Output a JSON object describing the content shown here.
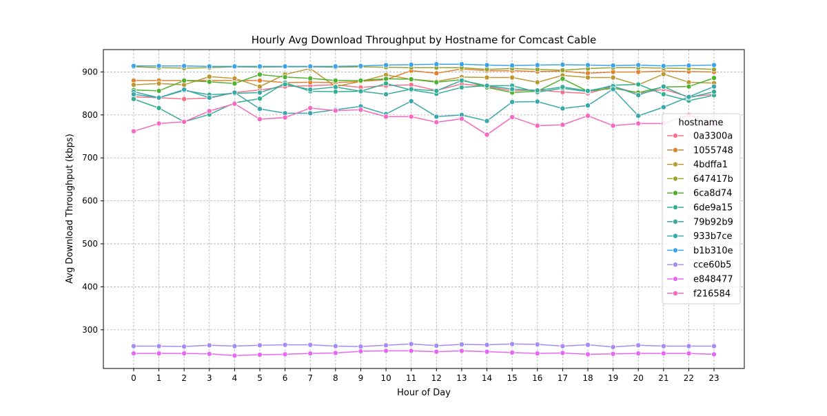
{
  "chart_data": {
    "type": "line",
    "title": "Hourly Avg Download Throughput by Hostname for Comcast Cable",
    "xlabel": "Hour of Day",
    "ylabel": "Avg Download Throughput (kbps)",
    "legend_title": "hostname",
    "legend_position": "right",
    "grid": true,
    "xlim": [
      -1.2,
      24.2
    ],
    "ylim": [
      210,
      952
    ],
    "yticks": [
      300,
      400,
      500,
      600,
      700,
      800,
      900
    ],
    "x": [
      0,
      1,
      2,
      3,
      4,
      5,
      6,
      7,
      8,
      9,
      10,
      11,
      12,
      13,
      14,
      15,
      16,
      17,
      18,
      19,
      20,
      21,
      22,
      23
    ],
    "series": [
      {
        "name": "0a3300a",
        "color": "#f77189",
        "values": [
          842,
          840,
          837,
          839,
          852,
          858,
          866,
          868,
          870,
          864,
          868,
          870,
          857,
          872,
          866,
          856,
          858,
          853,
          850,
          866,
          850,
          860,
          842,
          848
        ]
      },
      {
        "name": "1055748",
        "color": "#e08030",
        "values": [
          880,
          880,
          880,
          880,
          880,
          880,
          875,
          876,
          875,
          878,
          882,
          903,
          897,
          907,
          903,
          903,
          901,
          902,
          897,
          900,
          900,
          902,
          901,
          900
        ]
      },
      {
        "name": "4bdffa1",
        "color": "#bb9832",
        "values": [
          870,
          873,
          870,
          889,
          885,
          866,
          894,
          908,
          866,
          878,
          893,
          883,
          878,
          888,
          887,
          887,
          876,
          892,
          887,
          887,
          870,
          895,
          876,
          874
        ]
      },
      {
        "name": "647417b",
        "color": "#97a431",
        "values": [
          912,
          910,
          909,
          910,
          912,
          911,
          912,
          912,
          911,
          912,
          911,
          910,
          910,
          910,
          906,
          908,
          906,
          904,
          908,
          910,
          910,
          909,
          908,
          906
        ]
      },
      {
        "name": "6ca8d74",
        "color": "#50b131",
        "values": [
          858,
          856,
          880,
          877,
          873,
          894,
          888,
          885,
          880,
          880,
          884,
          883,
          876,
          882,
          864,
          852,
          855,
          884,
          855,
          862,
          852,
          865,
          866,
          886
        ]
      },
      {
        "name": "6de9a15",
        "color": "#34ae91",
        "values": [
          837,
          816,
          784,
          801,
          828,
          838,
          875,
          855,
          854,
          855,
          873,
          858,
          849,
          864,
          868,
          868,
          853,
          862,
          854,
          869,
          871,
          848,
          833,
          846
        ]
      },
      {
        "name": "79b92b9",
        "color": "#37aa9d",
        "values": [
          854,
          840,
          857,
          847,
          850,
          852,
          871,
          859,
          865,
          855,
          848,
          860,
          856,
          880,
          868,
          860,
          857,
          865,
          856,
          867,
          846,
          866,
          840,
          854
        ]
      },
      {
        "name": "933b7ce",
        "color": "#39a7ac",
        "values": [
          848,
          840,
          859,
          840,
          852,
          814,
          804,
          804,
          812,
          820,
          802,
          832,
          796,
          800,
          786,
          830,
          831,
          815,
          822,
          860,
          798,
          818,
          842,
          866
        ]
      },
      {
        "name": "b1b310e",
        "color": "#3ba3ec",
        "values": [
          914,
          914,
          914,
          913,
          913,
          913,
          913,
          913,
          913,
          914,
          916,
          917,
          918,
          918,
          916,
          915,
          916,
          917,
          916,
          915,
          916,
          914,
          915,
          916
        ]
      },
      {
        "name": "cce60b5",
        "color": "#a48cf4",
        "values": [
          262,
          262,
          261,
          264,
          262,
          264,
          265,
          265,
          262,
          261,
          264,
          267,
          263,
          266,
          265,
          267,
          266,
          262,
          265,
          260,
          264,
          262,
          262,
          262
        ]
      },
      {
        "name": "e848477",
        "color": "#e866f4",
        "values": [
          245,
          245,
          245,
          244,
          240,
          242,
          243,
          245,
          246,
          250,
          251,
          251,
          249,
          251,
          249,
          247,
          245,
          246,
          243,
          244,
          245,
          245,
          245,
          243
        ]
      },
      {
        "name": "f216584",
        "color": "#f668c2",
        "values": [
          762,
          780,
          784,
          809,
          826,
          790,
          794,
          816,
          810,
          812,
          796,
          796,
          783,
          791,
          754,
          795,
          775,
          777,
          798,
          775,
          780,
          780,
          800,
          778
        ]
      }
    ]
  }
}
